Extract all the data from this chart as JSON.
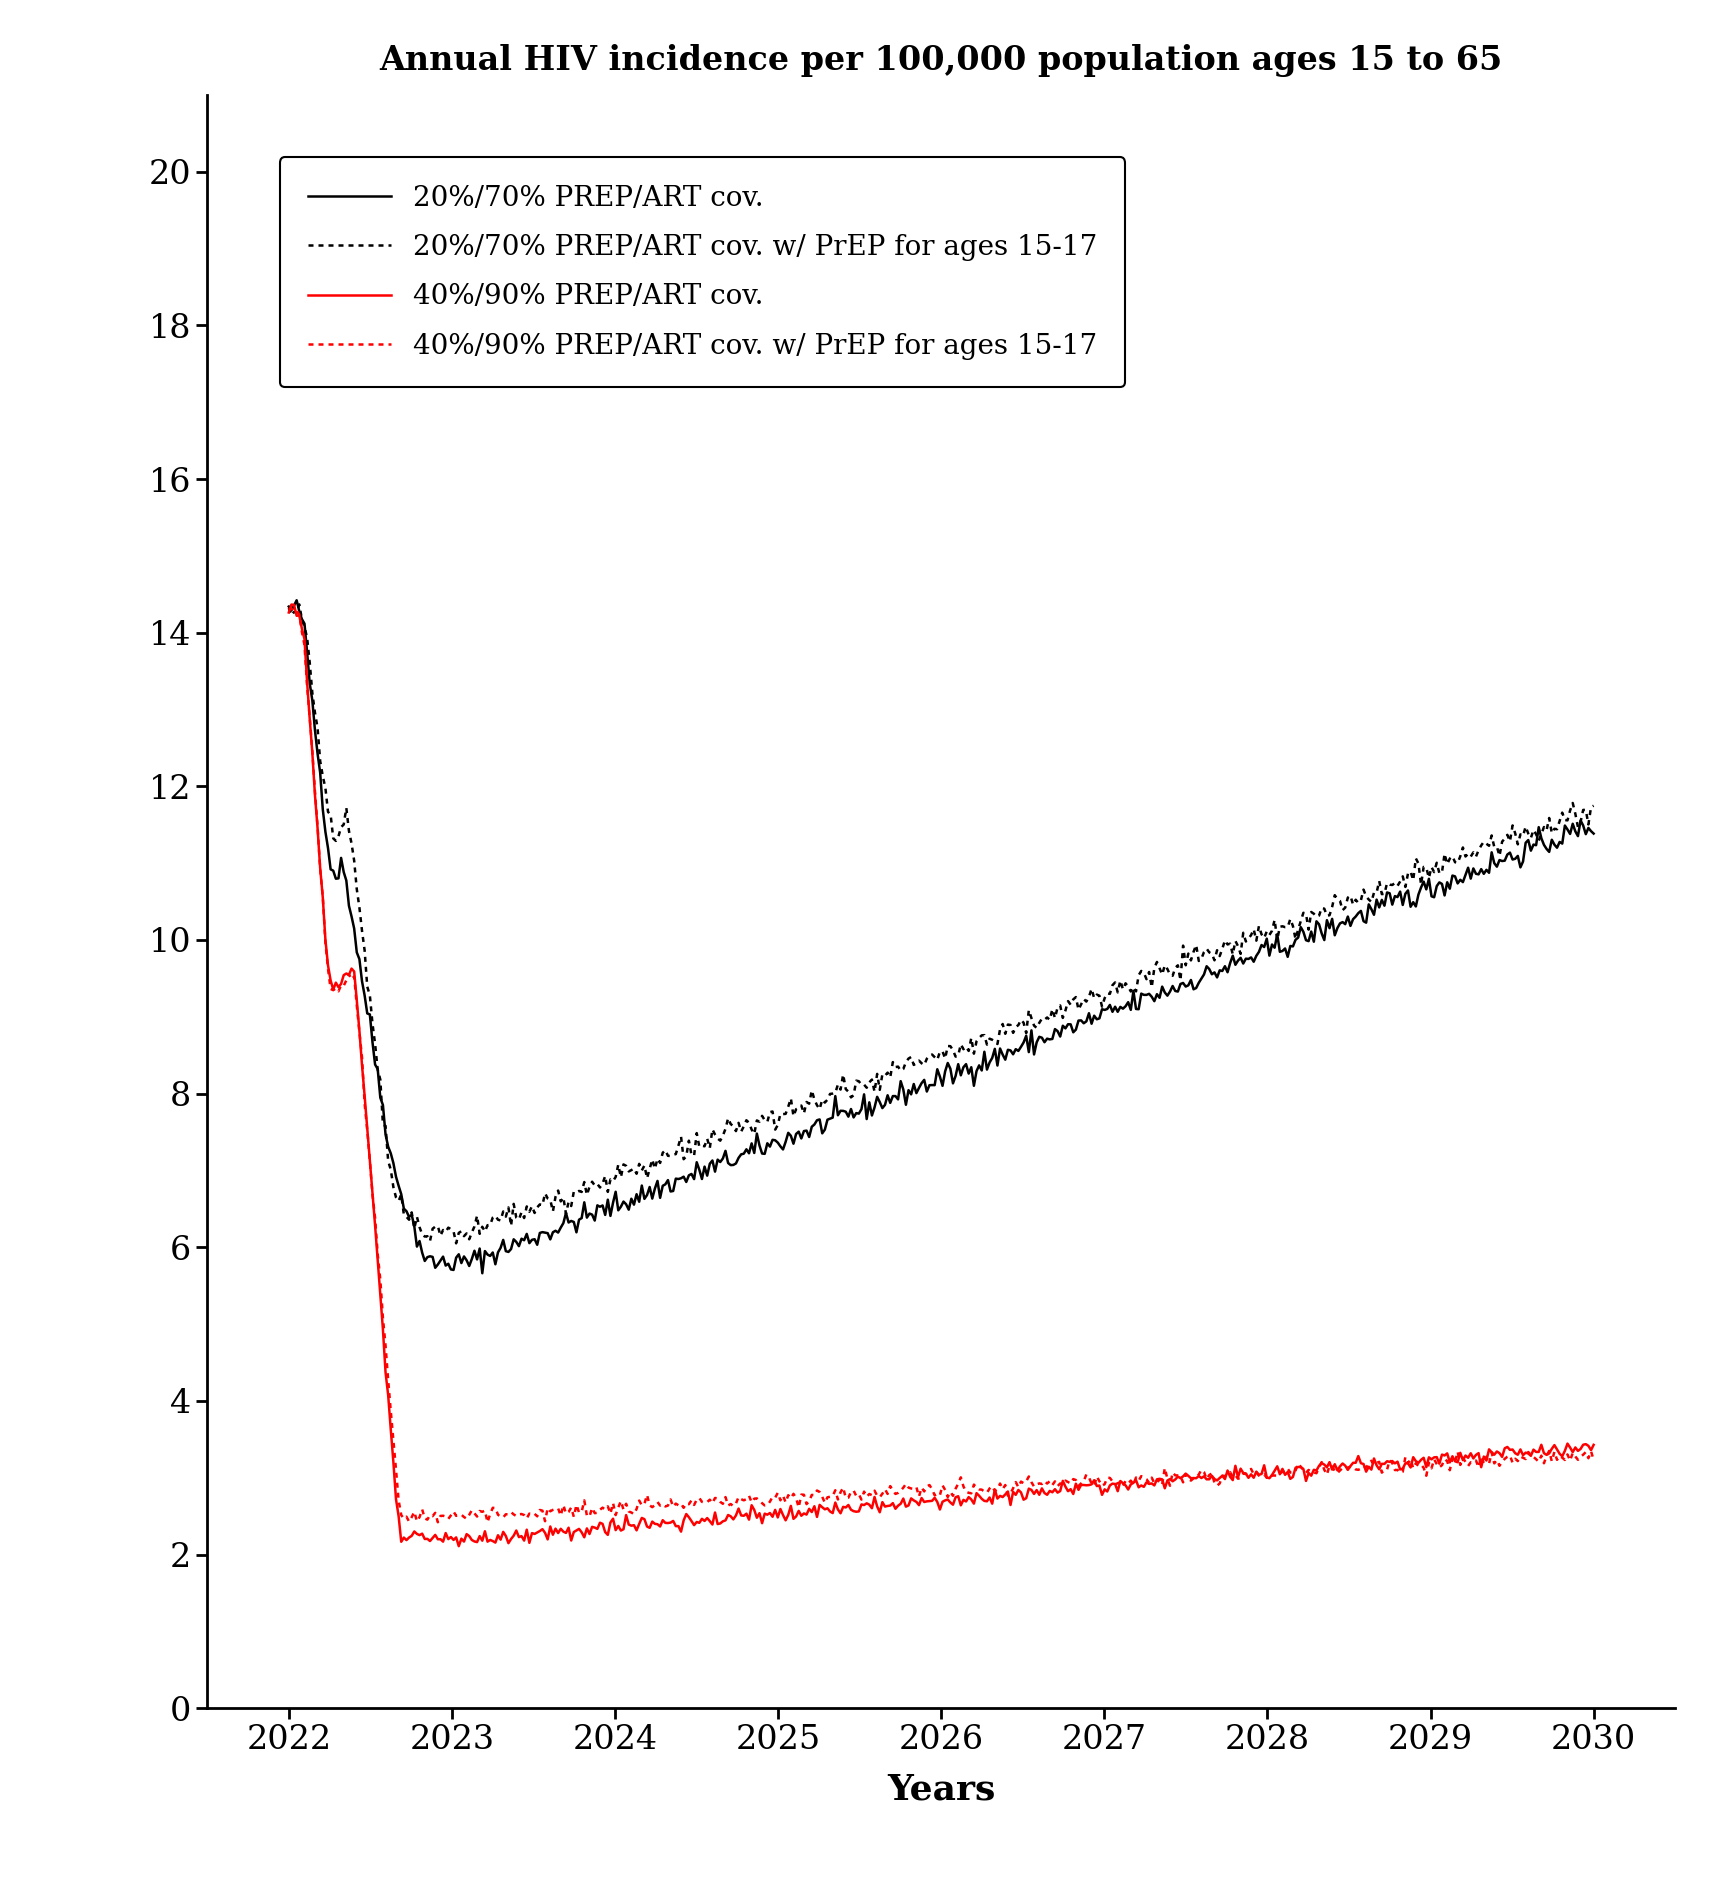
{
  "title": "Annual HIV incidence per 100,000 population ages 15 to 65",
  "xlabel": "Years",
  "ylabel": "",
  "xlim": [
    2021.5,
    2030.5
  ],
  "ylim": [
    0,
    21
  ],
  "yticks": [
    0,
    2,
    4,
    6,
    8,
    10,
    12,
    14,
    16,
    18,
    20
  ],
  "xticks": [
    2022,
    2023,
    2024,
    2025,
    2026,
    2027,
    2028,
    2029,
    2030
  ],
  "legend_entries": [
    {
      "label": "20%/70% PREP/ART cov.",
      "color": "#000000",
      "linestyle": "solid"
    },
    {
      "label": "20%/70% PREP/ART cov. w/ PrEP for ages 15-17",
      "color": "#000000",
      "linestyle": "dotted"
    },
    {
      "label": "40%/90% PREP/ART cov.",
      "color": "#ff0000",
      "linestyle": "solid"
    },
    {
      "label": "40%/90% PREP/ART cov. w/ PrEP for ages 15-17",
      "color": "#ff0000",
      "linestyle": "dotted"
    }
  ],
  "figsize": [
    17.27,
    18.98
  ],
  "dpi": 100
}
